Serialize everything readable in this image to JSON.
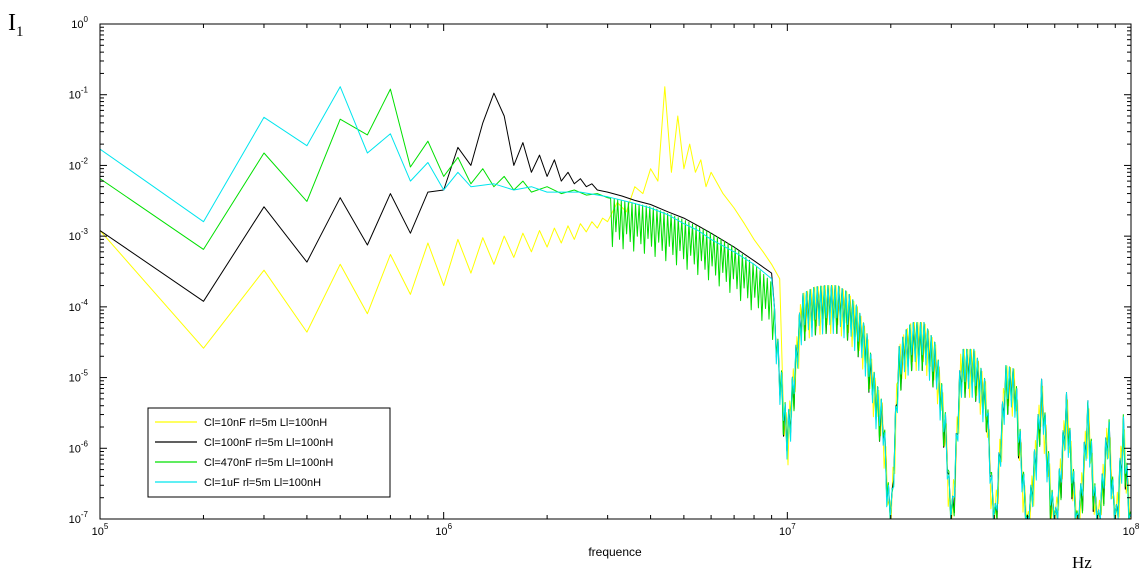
{
  "chart_data": {
    "type": "line",
    "title": "",
    "xlabel": "frequence",
    "ylabel": "I",
    "ylabel_subscript": "1",
    "x_unit": "Hz",
    "x_scale": "log",
    "y_scale": "log",
    "xlim": [
      100000,
      100000000
    ],
    "ylim": [
      1e-07,
      1
    ],
    "x_ticks": [
      {
        "value": 100000,
        "base": "10",
        "exp": "5"
      },
      {
        "value": 1000000,
        "base": "10",
        "exp": "6"
      },
      {
        "value": 10000000,
        "base": "10",
        "exp": "7"
      },
      {
        "value": 100000000,
        "base": "10",
        "exp": "8"
      }
    ],
    "y_ticks": [
      {
        "value": 1e-07,
        "base": "10",
        "exp": "-7"
      },
      {
        "value": 1e-06,
        "base": "10",
        "exp": "-6"
      },
      {
        "value": 1e-05,
        "base": "10",
        "exp": "-5"
      },
      {
        "value": 0.0001,
        "base": "10",
        "exp": "-4"
      },
      {
        "value": 0.001,
        "base": "10",
        "exp": "-3"
      },
      {
        "value": 0.01,
        "base": "10",
        "exp": "-2"
      },
      {
        "value": 0.1,
        "base": "10",
        "exp": "-1"
      },
      {
        "value": 1,
        "base": "10",
        "exp": "0"
      }
    ],
    "grid": false,
    "legend_position": "bottom-left",
    "series": [
      {
        "name": "Cl=10nF rl=5m Ll=100nH",
        "color": "#ffff00",
        "points": [
          [
            100000,
            0.0012
          ],
          [
            200000,
            2.6e-05
          ],
          [
            300000,
            0.00033
          ],
          [
            400000,
            4.4e-05
          ],
          [
            500000,
            0.0004
          ],
          [
            600000,
            8e-05
          ],
          [
            700000,
            0.00055
          ],
          [
            800000,
            0.00015
          ],
          [
            900000,
            0.0008
          ],
          [
            1000000,
            0.0002
          ],
          [
            1100000,
            0.0009
          ],
          [
            1200000,
            0.0003
          ],
          [
            1300000,
            0.00095
          ],
          [
            1400000,
            0.0004
          ],
          [
            1500000,
            0.001
          ],
          [
            1600000,
            0.0005
          ],
          [
            1700000,
            0.0011
          ],
          [
            1800000,
            0.0006
          ],
          [
            1900000,
            0.0012
          ],
          [
            2000000,
            0.0007
          ],
          [
            2100000,
            0.0013
          ],
          [
            2200000,
            0.0008
          ],
          [
            2300000,
            0.0014
          ],
          [
            2400000,
            0.0009
          ],
          [
            2500000,
            0.0015
          ],
          [
            2600000,
            0.00115
          ],
          [
            2700000,
            0.0016
          ],
          [
            2800000,
            0.0013
          ],
          [
            2900000,
            0.0018
          ],
          [
            3000000,
            0.0016
          ],
          [
            3200000,
            0.003
          ],
          [
            3400000,
            0.0022
          ],
          [
            3600000,
            0.005
          ],
          [
            3800000,
            0.004
          ],
          [
            4000000,
            0.009
          ],
          [
            4200000,
            0.006
          ],
          [
            4400000,
            0.13
          ],
          [
            4600000,
            0.008
          ],
          [
            4800000,
            0.05
          ],
          [
            5000000,
            0.009
          ],
          [
            5200000,
            0.02
          ],
          [
            5400000,
            0.008
          ],
          [
            5600000,
            0.012
          ],
          [
            5800000,
            0.005
          ],
          [
            6000000,
            0.008
          ],
          [
            6500000,
            0.004
          ],
          [
            7000000,
            0.0025
          ],
          [
            7500000,
            0.0015
          ],
          [
            8000000,
            0.0009
          ],
          [
            8500000,
            0.0006
          ],
          [
            9000000,
            0.0004
          ],
          [
            9500000,
            0.00025
          ]
        ]
      },
      {
        "name": "Cl=100nF rl=5m Ll=100nH",
        "color": "#000000",
        "points": [
          [
            100000,
            0.0012
          ],
          [
            200000,
            0.00012
          ],
          [
            300000,
            0.0026
          ],
          [
            400000,
            0.00043
          ],
          [
            500000,
            0.0035
          ],
          [
            600000,
            0.00075
          ],
          [
            700000,
            0.004
          ],
          [
            800000,
            0.0011
          ],
          [
            900000,
            0.0042
          ],
          [
            1000000,
            0.0045
          ],
          [
            1100000,
            0.018
          ],
          [
            1200000,
            0.01
          ],
          [
            1300000,
            0.04
          ],
          [
            1400000,
            0.105
          ],
          [
            1500000,
            0.05
          ],
          [
            1600000,
            0.01
          ],
          [
            1700000,
            0.021
          ],
          [
            1800000,
            0.008
          ],
          [
            1900000,
            0.014
          ],
          [
            2000000,
            0.007
          ],
          [
            2100000,
            0.012
          ],
          [
            2200000,
            0.006
          ],
          [
            2300000,
            0.008
          ],
          [
            2400000,
            0.0055
          ],
          [
            2500000,
            0.0065
          ],
          [
            2600000,
            0.005
          ],
          [
            2700000,
            0.0055
          ],
          [
            2800000,
            0.0045
          ],
          [
            3000000,
            0.0042
          ],
          [
            3300000,
            0.0037
          ],
          [
            3600000,
            0.0032
          ],
          [
            4000000,
            0.0028
          ],
          [
            4500000,
            0.0022
          ],
          [
            5000000,
            0.0018
          ],
          [
            5500000,
            0.0014
          ],
          [
            6000000,
            0.0011
          ],
          [
            7000000,
            0.0007
          ],
          [
            8000000,
            0.00045
          ],
          [
            9000000,
            0.0003
          ]
        ]
      },
      {
        "name": "Cl=470nF rl=5m Ll=100nH",
        "color": "#00e000",
        "points": [
          [
            100000,
            0.0065
          ],
          [
            200000,
            0.00065
          ],
          [
            300000,
            0.015
          ],
          [
            400000,
            0.0031
          ],
          [
            500000,
            0.045
          ],
          [
            600000,
            0.027
          ],
          [
            700000,
            0.12
          ],
          [
            800000,
            0.0095
          ],
          [
            900000,
            0.022
          ],
          [
            1000000,
            0.007
          ],
          [
            1100000,
            0.013
          ],
          [
            1200000,
            0.0055
          ],
          [
            1300000,
            0.009
          ],
          [
            1400000,
            0.005
          ],
          [
            1500000,
            0.007
          ],
          [
            1600000,
            0.0045
          ],
          [
            1700000,
            0.006
          ],
          [
            1800000,
            0.0042
          ],
          [
            2000000,
            0.005
          ],
          [
            2200000,
            0.004
          ],
          [
            2400000,
            0.0045
          ],
          [
            2600000,
            0.0038
          ],
          [
            2800000,
            0.004
          ],
          [
            3000000,
            0.0035
          ]
        ]
      },
      {
        "name": "Cl=1uF rl=5m Ll=100nH",
        "color": "#00e5ee",
        "points": [
          [
            100000,
            0.017
          ],
          [
            200000,
            0.0016
          ],
          [
            300000,
            0.048
          ],
          [
            400000,
            0.019
          ],
          [
            500000,
            0.13
          ],
          [
            600000,
            0.015
          ],
          [
            700000,
            0.028
          ],
          [
            800000,
            0.006
          ],
          [
            900000,
            0.011
          ],
          [
            1000000,
            0.0045
          ],
          [
            1100000,
            0.008
          ],
          [
            1200000,
            0.005
          ],
          [
            1400000,
            0.0055
          ],
          [
            1600000,
            0.0045
          ],
          [
            1800000,
            0.005
          ],
          [
            2000000,
            0.0042
          ],
          [
            2500000,
            0.0042
          ],
          [
            3000000,
            0.0036
          ],
          [
            3500000,
            0.003
          ],
          [
            4000000,
            0.0025
          ],
          [
            4500000,
            0.002
          ],
          [
            5000000,
            0.0015
          ],
          [
            5500000,
            0.0012
          ],
          [
            6000000,
            0.0009
          ],
          [
            7000000,
            0.0006
          ],
          [
            8000000,
            0.0004
          ],
          [
            9000000,
            0.00025
          ]
        ]
      }
    ],
    "high_freq_envelope": {
      "series": "all",
      "upper": [
        [
          3000000,
          0.0035
        ],
        [
          4000000,
          0.0026
        ],
        [
          5000000,
          0.0017
        ],
        [
          6000000,
          0.0011
        ],
        [
          7000000,
          0.0007
        ],
        [
          8000000,
          0.0004
        ],
        [
          9000000,
          0.00022
        ],
        [
          10000000,
          2.3e-06
        ],
        [
          11000000,
          0.00015
        ],
        [
          12000000,
          0.00019
        ],
        [
          13000000,
          0.0002
        ],
        [
          14000000,
          0.0002
        ],
        [
          15000000,
          0.00016
        ],
        [
          16000000,
          0.0001
        ],
        [
          17000000,
          4.5e-05
        ],
        [
          18000000,
          1e-05
        ],
        [
          19000000,
          4e-06
        ],
        [
          20000000,
          1e-07
        ],
        [
          21000000,
          2.5e-05
        ],
        [
          22000000,
          4.5e-05
        ],
        [
          23000000,
          6e-05
        ],
        [
          25000000,
          6e-05
        ],
        [
          27000000,
          3e-05
        ],
        [
          28000000,
          1e-05
        ],
        [
          29000000,
          2.5e-06
        ],
        [
          30000000,
          1e-07
        ],
        [
          32000000,
          2.5e-05
        ],
        [
          35000000,
          2.5e-05
        ],
        [
          38000000,
          8e-06
        ],
        [
          40000000,
          1e-07
        ],
        [
          43000000,
          1.5e-05
        ],
        [
          46000000,
          1.3e-05
        ],
        [
          50000000,
          1e-07
        ],
        [
          55000000,
          1e-05
        ],
        [
          60000000,
          1e-07
        ],
        [
          65000000,
          6.5e-06
        ],
        [
          70000000,
          1e-07
        ],
        [
          75000000,
          5e-06
        ],
        [
          80000000,
          1e-07
        ],
        [
          86000000,
          3.5e-06
        ],
        [
          90000000,
          1e-07
        ],
        [
          95000000,
          3e-06
        ],
        [
          100000000,
          1e-07
        ]
      ],
      "lower_fraction": 0.35
    }
  }
}
